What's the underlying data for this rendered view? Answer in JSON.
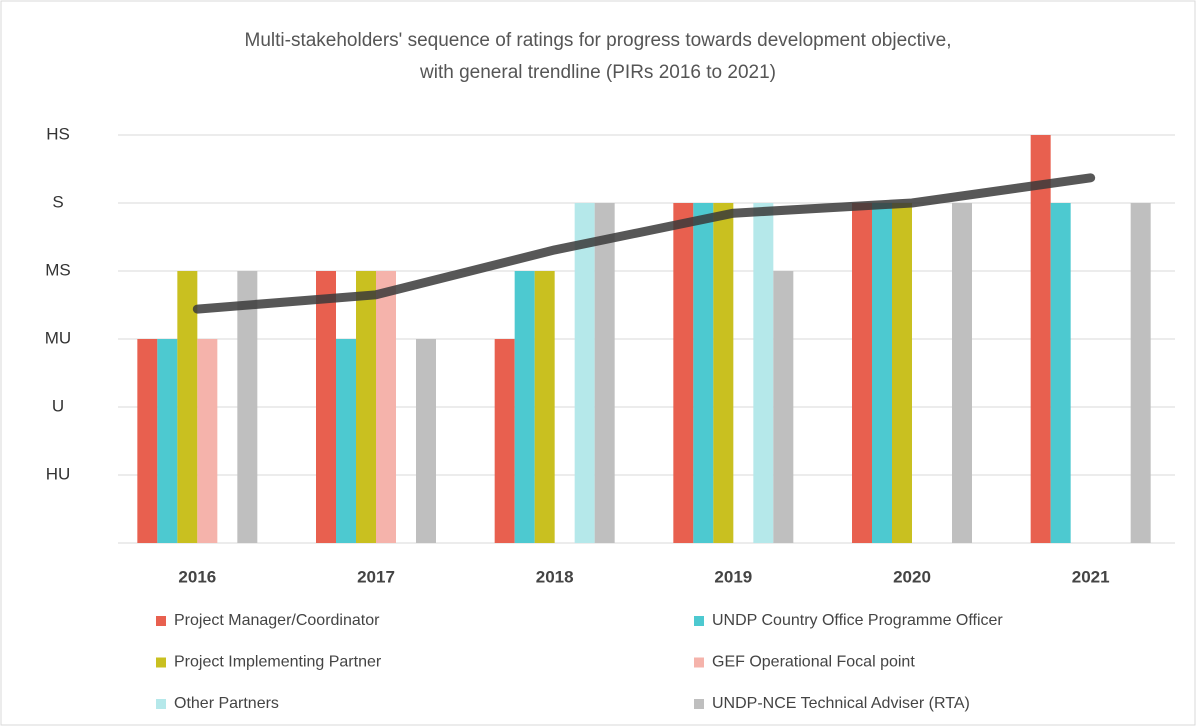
{
  "chart_data": {
    "type": "bar",
    "title": [
      "Multi-stakeholders' sequence of ratings for progress towards development objective,",
      "with general trendline (PIRs 2016 to 2021)"
    ],
    "categories": [
      "2016",
      "2017",
      "2018",
      "2019",
      "2020",
      "2021"
    ],
    "ylim": [
      0,
      6
    ],
    "yticks": [
      {
        "value": 1,
        "label": "HU"
      },
      {
        "value": 2,
        "label": "U"
      },
      {
        "value": 3,
        "label": "MU"
      },
      {
        "value": 4,
        "label": "MS"
      },
      {
        "value": 5,
        "label": "S"
      },
      {
        "value": 6,
        "label": "HS"
      }
    ],
    "grid": true,
    "series": [
      {
        "name": "Project Manager/Coordinator",
        "color": "#e8604f",
        "values": [
          3,
          4,
          3,
          5,
          5,
          6
        ]
      },
      {
        "name": "UNDP Country Office Programme Officer",
        "color": "#4dc9d0",
        "values": [
          3,
          3,
          4,
          5,
          5,
          5
        ]
      },
      {
        "name": "Project Implementing Partner",
        "color": "#c9c020",
        "values": [
          4,
          4,
          4,
          5,
          5,
          null
        ]
      },
      {
        "name": "GEF Operational Focal point",
        "color": "#f5b3ab",
        "values": [
          3,
          4,
          null,
          null,
          null,
          null
        ]
      },
      {
        "name": "Other Partners",
        "color": "#b5e8ea",
        "values": [
          null,
          null,
          5,
          5,
          null,
          null
        ]
      },
      {
        "name": "UNDP-NCE Technical Adviser (RTA)",
        "color": "#bfbfbf",
        "values": [
          4,
          3,
          5,
          4,
          5,
          5
        ]
      }
    ],
    "trendline": {
      "color": "#3a3a3a",
      "values": [
        3.44,
        3.65,
        4.31,
        4.85,
        5.0,
        5.37
      ]
    }
  }
}
